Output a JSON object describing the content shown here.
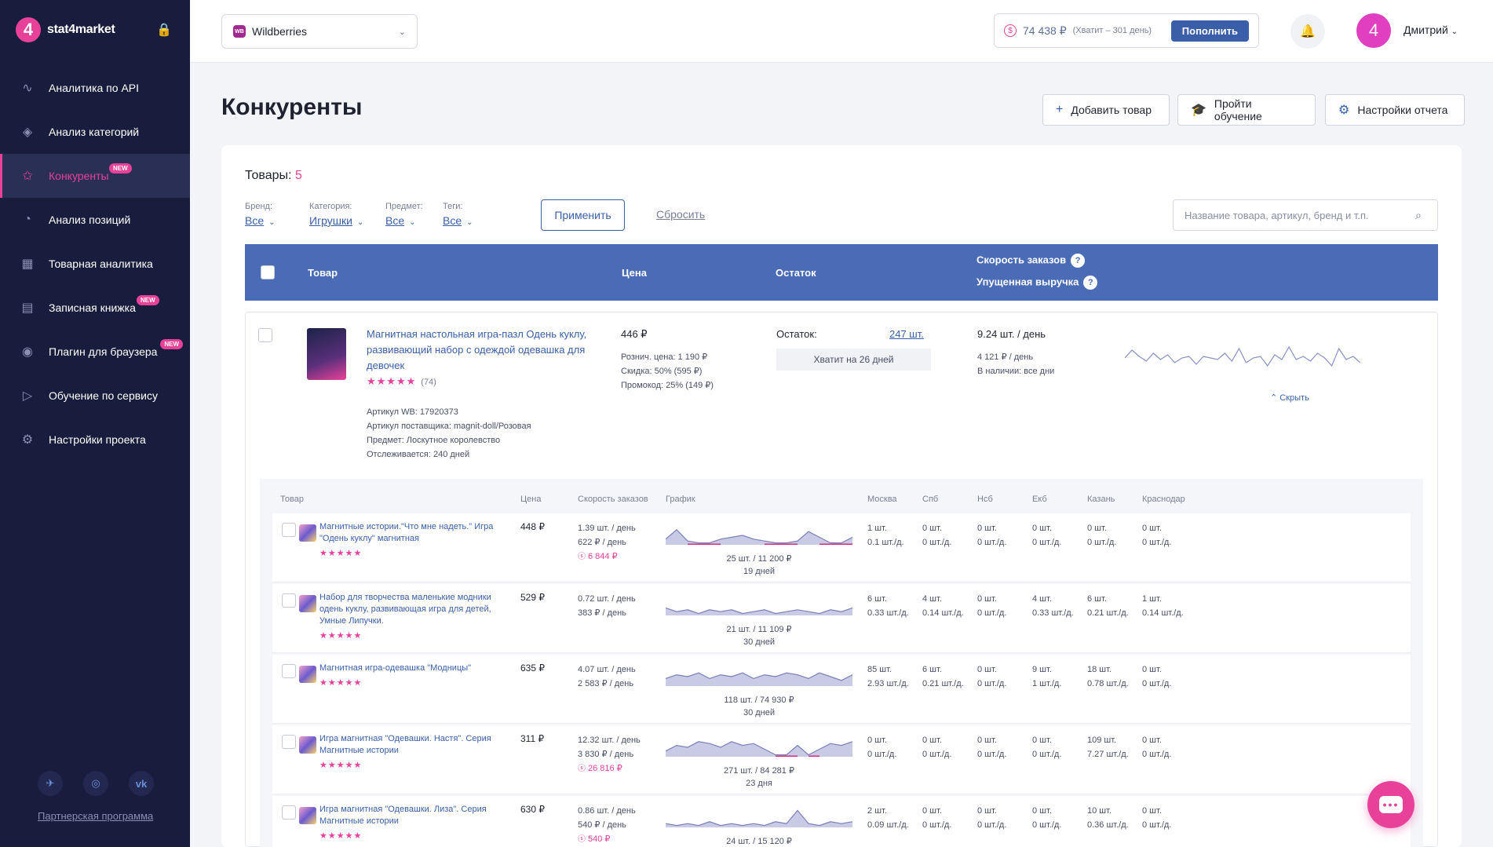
{
  "brand": {
    "name": "stat4market",
    "mark": "4"
  },
  "nav": [
    {
      "label": "Аналитика по API",
      "icon": "chart-line-icon",
      "glyph": "∿",
      "badge": ""
    },
    {
      "label": "Анализ категорий",
      "icon": "layers-icon",
      "glyph": "◈",
      "badge": ""
    },
    {
      "label": "Конкуренты",
      "icon": "star-icon",
      "glyph": "✩",
      "badge": "NEW",
      "active": true
    },
    {
      "label": "Анализ позиций",
      "icon": "drop-icon",
      "glyph": "◔",
      "badge": ""
    },
    {
      "label": "Товарная аналитика",
      "icon": "grid-icon",
      "glyph": "▦",
      "badge": ""
    },
    {
      "label": "Записная книжка",
      "icon": "notebook-icon",
      "glyph": "▤",
      "badge": "NEW"
    },
    {
      "label": "Плагин для браузера",
      "icon": "chrome-icon",
      "glyph": "◉",
      "badge": "NEW"
    },
    {
      "label": "Обучение по сервису",
      "icon": "play-icon",
      "glyph": "▷",
      "badge": ""
    },
    {
      "label": "Настройки проекта",
      "icon": "gear-icon",
      "glyph": "⚙",
      "badge": ""
    }
  ],
  "socials": [
    {
      "icon": "telegram-icon",
      "glyph": "✈"
    },
    {
      "icon": "instagram-icon",
      "glyph": "◎"
    },
    {
      "icon": "vk-icon",
      "glyph": "vk"
    }
  ],
  "partner": "Партнерская программа",
  "topbar": {
    "marketplace": "Wildberries",
    "marketplace_badge": "WB",
    "balance": "74 438 ₽",
    "balance_note": "(Хватит – 301 день)",
    "topup": "Пополнить",
    "avatar": "4",
    "user": "Дмитрий"
  },
  "page": {
    "title": "Конкуренты",
    "actions": [
      {
        "label": "Добавить товар",
        "icon": "plus-icon",
        "glyph": "+"
      },
      {
        "label": "Пройти обучение",
        "icon": "graduation-icon",
        "glyph": "🎓"
      },
      {
        "label": "Настройки отчета",
        "icon": "gear-icon",
        "glyph": "⚙"
      }
    ]
  },
  "products": {
    "label": "Товары:",
    "count": "5"
  },
  "filters": [
    {
      "label": "Бренд:",
      "value": "Все"
    },
    {
      "label": "Категория:",
      "value": "Игрушки"
    },
    {
      "label": "Предмет:",
      "value": "Все"
    },
    {
      "label": "Теги:",
      "value": "Все"
    }
  ],
  "apply": "Применить",
  "reset": "Сбросить",
  "search_placeholder": "Название товара, артикул, бренд и т.п.",
  "table_head": {
    "product": "Товар",
    "price": "Цена",
    "stock": "Остаток",
    "speed": "Скорость заказов",
    "lost": "Упущенная выручка",
    "q": "?"
  },
  "main_product": {
    "name": "Магнитная настольная игра-пазл Одень куклу, развивающий набор с одеждой одевашка для девочек",
    "stars": "★★★★★",
    "reviews": "(74)",
    "meta": [
      "Артикул WB: 17920373",
      "Артикул поставщика: magnit-doll/Розовая",
      "Предмет: Лоскутное королевство",
      "Отслеживается: 240 дней"
    ],
    "price": "446 ₽",
    "price_details": [
      "Рознич. цена: 1 190 ₽",
      "Скидка: 50% (595 ₽)",
      "Промокод: 25% (149 ₽)"
    ],
    "stock_label": "Остаток:",
    "stock_value": "247 шт.",
    "enough": "Хватит на 26 дней",
    "speed": "9.24 шт. / день",
    "speed_details": [
      "4 121 ₽ / день",
      "В наличии:  все дни"
    ],
    "hide": "Скрыть",
    "spark": [
      0.55,
      0.8,
      0.6,
      0.45,
      0.7,
      0.5,
      0.65,
      0.4,
      0.55,
      0.6,
      0.35,
      0.6,
      0.55,
      0.5,
      0.7,
      0.45,
      0.85,
      0.4,
      0.55,
      0.6,
      0.3,
      0.65,
      0.5,
      0.9,
      0.5,
      0.6,
      0.45,
      0.7,
      0.55,
      0.3,
      0.85,
      0.5,
      0.6,
      0.4
    ]
  },
  "sub_head": {
    "product": "Товар",
    "price": "Цена",
    "speed": "Скорость заказов",
    "graph": "График",
    "cities": [
      "Москва",
      "Спб",
      "Нсб",
      "Екб",
      "Казань",
      "Краснодар"
    ]
  },
  "competitors": [
    {
      "name": "Магнитные истории.\"Что мне надеть.\" Игра \"Одень куклу\" магнитная",
      "stars": "★★★★★",
      "price": "448 ₽",
      "speed": "1.39 шт. / день",
      "revenue": "622 ₽ / день",
      "lost": "6 844 ₽",
      "total": "25 шт. / 11 200 ₽",
      "days": "19 дней",
      "cities": [
        [
          "1 шт.",
          "0.1 шт./д."
        ],
        [
          "0 шт.",
          "0 шт./д."
        ],
        [
          "0 шт.",
          "0 шт./д."
        ],
        [
          "0 шт.",
          "0 шт./д."
        ],
        [
          "0 шт.",
          "0 шт./д."
        ],
        [
          "0 шт.",
          "0 шт./д."
        ]
      ],
      "spark": [
        0.3,
        0.8,
        0.2,
        0.1,
        0.1,
        0.3,
        0.4,
        0.5,
        0.3,
        0.2,
        0.1,
        0.1,
        0.2,
        0.7,
        0.4,
        0.1,
        0.1,
        0.4
      ],
      "gaps": [
        2,
        3,
        4,
        9,
        10,
        11,
        14,
        15,
        16
      ]
    },
    {
      "name": "Набор для творчества маленькие модники одень куклу, развивающая игра для детей, Умные Липучки.",
      "stars": "★★★★★",
      "price": "529 ₽",
      "speed": "0.72 шт. / день",
      "revenue": "383 ₽ / день",
      "lost": "",
      "total": "21 шт. / 11 109 ₽",
      "days": "30 дней",
      "cities": [
        [
          "6 шт.",
          "0.33 шт./д."
        ],
        [
          "4 шт.",
          "0.14 шт./д."
        ],
        [
          "0 шт.",
          "0 шт./д."
        ],
        [
          "4 шт.",
          "0.33 шт./д."
        ],
        [
          "6 шт.",
          "0.21 шт./д."
        ],
        [
          "1 шт.",
          "0.14 шт./д."
        ]
      ],
      "spark": [
        0.4,
        0.2,
        0.3,
        0.1,
        0.3,
        0.2,
        0.3,
        0.1,
        0.2,
        0.3,
        0.1,
        0.2,
        0.3,
        0.2,
        0.1,
        0.3,
        0.2,
        0.4
      ],
      "gaps": []
    },
    {
      "name": "Магнитная игра-одевашка \"Модницы\"",
      "stars": "★★★★★",
      "price": "635 ₽",
      "speed": "4.07 шт. / день",
      "revenue": "2 583 ₽ / день",
      "lost": "",
      "total": "118 шт. / 74 930 ₽",
      "days": "30 дней",
      "cities": [
        [
          "85 шт.",
          "2.93 шт./д."
        ],
        [
          "6 шт.",
          "0.21 шт./д."
        ],
        [
          "0 шт.",
          "0 шт./д."
        ],
        [
          "9 шт.",
          "1 шт./д."
        ],
        [
          "18 шт.",
          "0.78 шт./д."
        ],
        [
          "0 шт.",
          "0 шт./д."
        ]
      ],
      "spark": [
        0.4,
        0.6,
        0.5,
        0.7,
        0.4,
        0.6,
        0.5,
        0.7,
        0.4,
        0.6,
        0.5,
        0.7,
        0.6,
        0.4,
        0.7,
        0.5,
        0.3,
        0.6
      ],
      "gaps": []
    },
    {
      "name": "Игра магнитная \"Одевашки. Настя\". Серия Магнитные истории",
      "stars": "★★★★★",
      "price": "311 ₽",
      "speed": "12.32 шт. / день",
      "revenue": "3 830 ₽ / день",
      "lost": "26 816 ₽",
      "total": "271 шт. / 84 281 ₽",
      "days": "23 дня",
      "cities": [
        [
          "0 шт.",
          "0 шт./д."
        ],
        [
          "0 шт.",
          "0 шт./д."
        ],
        [
          "0 шт.",
          "0 шт./д."
        ],
        [
          "0 шт.",
          "0 шт./д."
        ],
        [
          "109 шт.",
          "7.27 шт./д."
        ],
        [
          "0 шт.",
          "0 шт./д."
        ]
      ],
      "spark": [
        0.3,
        0.6,
        0.5,
        0.8,
        0.7,
        0.5,
        0.8,
        0.6,
        0.7,
        0.4,
        0.1,
        0.1,
        0.6,
        0.1,
        0.4,
        0.7,
        0.6,
        0.8
      ],
      "gaps": [
        10,
        11,
        13
      ]
    },
    {
      "name": "Игра магнитная \"Одевашки. Лиза\". Серия Магнитные истории",
      "stars": "★★★★★",
      "price": "630 ₽",
      "speed": "0.86 шт. / день",
      "revenue": "540 ₽ / день",
      "lost": "540 ₽",
      "total": "24 шт. / 15 120 ₽",
      "days": "",
      "cities": [
        [
          "2 шт.",
          "0.09 шт./д."
        ],
        [
          "0 шт.",
          "0 шт./д."
        ],
        [
          "0 шт.",
          "0 шт./д."
        ],
        [
          "0 шт.",
          "0 шт./д."
        ],
        [
          "10 шт.",
          "0.36 шт./д."
        ],
        [
          "0 шт.",
          "0 шт./д."
        ]
      ],
      "spark": [
        0.2,
        0.1,
        0.2,
        0.1,
        0.3,
        0.1,
        0.2,
        0.1,
        0.2,
        0.1,
        0.3,
        0.2,
        0.9,
        0.2,
        0.1,
        0.3,
        0.2,
        0.3
      ],
      "gaps": []
    }
  ]
}
